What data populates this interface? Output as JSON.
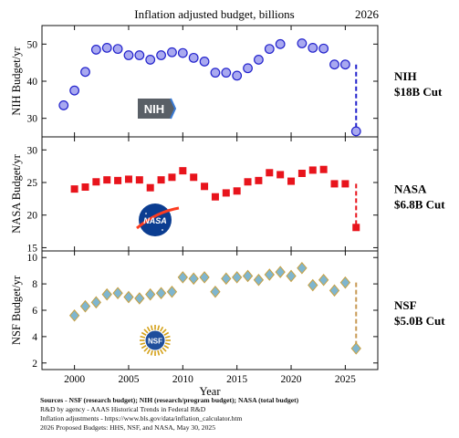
{
  "title": "Inflation adjusted budget, billions",
  "proposed_year_label": "2026",
  "xlabel": "Year",
  "colors": {
    "nih_fill": "#a9a9f0",
    "nih_edge": "#2222cc",
    "nasa_fill": "#e8141c",
    "nsf_fill": "#7fb6cf",
    "nsf_edge": "#c8a040",
    "nsf_dash": "#c89a55",
    "axes": "#111111",
    "nih_logo_bg": "#595f66",
    "nasa_logo_bg": "#0b3d91"
  },
  "logos": {
    "nih": "NIH",
    "nasa": "NASA",
    "nsf": "NSF"
  },
  "chart_data": [
    {
      "type": "scatter",
      "name": "NIH",
      "ylabel": "NIH Budget/yr",
      "ylim": [
        25,
        55
      ],
      "yticks": [
        30,
        40,
        50
      ],
      "xlim": [
        1997,
        2028
      ],
      "x": [
        1999,
        2000,
        2001,
        2002,
        2003,
        2004,
        2005,
        2006,
        2007,
        2008,
        2009,
        2010,
        2011,
        2012,
        2013,
        2014,
        2015,
        2016,
        2017,
        2018,
        2019,
        2021,
        2022,
        2023,
        2024,
        2025
      ],
      "y": [
        33.5,
        37.5,
        42.5,
        48.5,
        49,
        48.7,
        47,
        47,
        45.8,
        47,
        47.8,
        47.6,
        46.3,
        45.3,
        42.3,
        42.3,
        41.5,
        43.5,
        45.8,
        48.7,
        50,
        50.2,
        49,
        48.8,
        44.5,
        44.5
      ],
      "proposed": {
        "x": 2026,
        "y": 26.5
      },
      "cut_label": [
        "NIH",
        "$18B Cut"
      ],
      "marker": "circle"
    },
    {
      "type": "scatter",
      "name": "NASA",
      "ylabel": "NASA Budget/yr",
      "ylim": [
        14.5,
        32
      ],
      "yticks": [
        15,
        20,
        25,
        30
      ],
      "xlim": [
        1997,
        2028
      ],
      "x": [
        2000,
        2001,
        2002,
        2003,
        2004,
        2005,
        2006,
        2007,
        2008,
        2009,
        2010,
        2011,
        2012,
        2013,
        2014,
        2015,
        2016,
        2017,
        2018,
        2019,
        2020,
        2021,
        2022,
        2023,
        2024,
        2025
      ],
      "y": [
        24,
        24.3,
        25.1,
        25.4,
        25.3,
        25.5,
        25.4,
        24.2,
        25.4,
        25.8,
        26.8,
        25.8,
        24.4,
        22.8,
        23.4,
        23.7,
        25.1,
        25.3,
        26.5,
        26.2,
        25.2,
        26.4,
        26.9,
        27,
        24.8,
        24.8
      ],
      "proposed": {
        "x": 2026,
        "y": 18.1
      },
      "cut_label": [
        "NASA",
        "$6.8B Cut"
      ],
      "marker": "square"
    },
    {
      "type": "scatter",
      "name": "NSF",
      "ylabel": "NSF Budget/yr",
      "ylim": [
        1.5,
        10.5
      ],
      "yticks": [
        2,
        4,
        6,
        8,
        10
      ],
      "xlim": [
        1997,
        2028
      ],
      "xticks": [
        2000,
        2005,
        2010,
        2015,
        2020,
        2025
      ],
      "x": [
        2000,
        2001,
        2002,
        2003,
        2004,
        2005,
        2006,
        2007,
        2008,
        2009,
        2010,
        2011,
        2012,
        2013,
        2014,
        2015,
        2016,
        2017,
        2018,
        2019,
        2020,
        2021,
        2022,
        2023,
        2024,
        2025
      ],
      "y": [
        5.6,
        6.3,
        6.6,
        7.2,
        7.3,
        7.0,
        6.9,
        7.2,
        7.3,
        7.4,
        8.5,
        8.4,
        8.5,
        7.4,
        8.4,
        8.5,
        8.6,
        8.3,
        8.7,
        8.9,
        8.6,
        9.2,
        7.9,
        8.3,
        7.5,
        8.1
      ],
      "proposed": {
        "x": 2026,
        "y": 3.1
      },
      "cut_label": [
        "NSF",
        "$5.0B Cut"
      ],
      "marker": "diamond"
    }
  ],
  "sources": [
    "Sources - NSF (research budget); NIH (research/program budget); NASA (total budget)",
    "R&D by agency - AAAS Historical Trends in Federal R&D",
    "Inflation adjustments - https://www.bls.gov/data/inflation_calculator.htm",
    "2026 Proposed Budgets: HHS, NSF, and NASA, May 30, 2025"
  ]
}
